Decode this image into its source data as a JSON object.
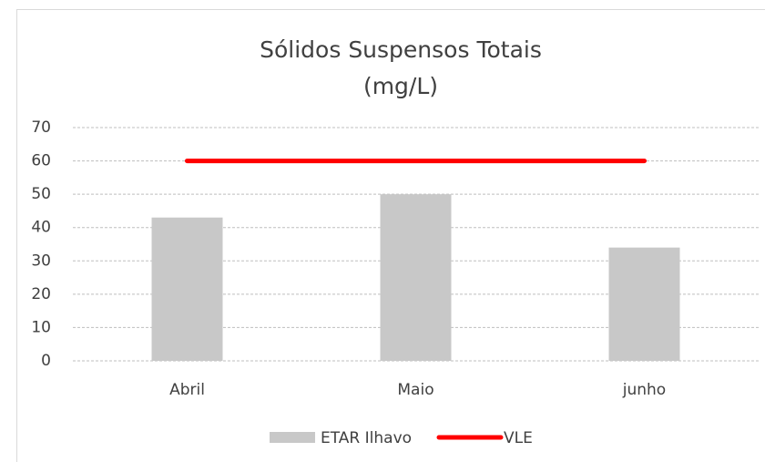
{
  "chart_data": {
    "type": "bar",
    "title": [
      "Sólidos Suspensos Totais",
      "(mg/L)"
    ],
    "categories": [
      "Abril",
      "Maio",
      "junho"
    ],
    "series": [
      {
        "name": "ETAR Ilhavo",
        "type": "bar",
        "color": "#c8c8c8",
        "values": [
          43,
          50,
          34
        ]
      },
      {
        "name": "VLE",
        "type": "line",
        "color": "#ff0000",
        "values": [
          60,
          60,
          60
        ]
      }
    ],
    "ylim": [
      0,
      70
    ],
    "yticks": [
      0,
      10,
      20,
      30,
      40,
      50,
      60,
      70
    ],
    "grid": true,
    "legend": "bottom"
  }
}
